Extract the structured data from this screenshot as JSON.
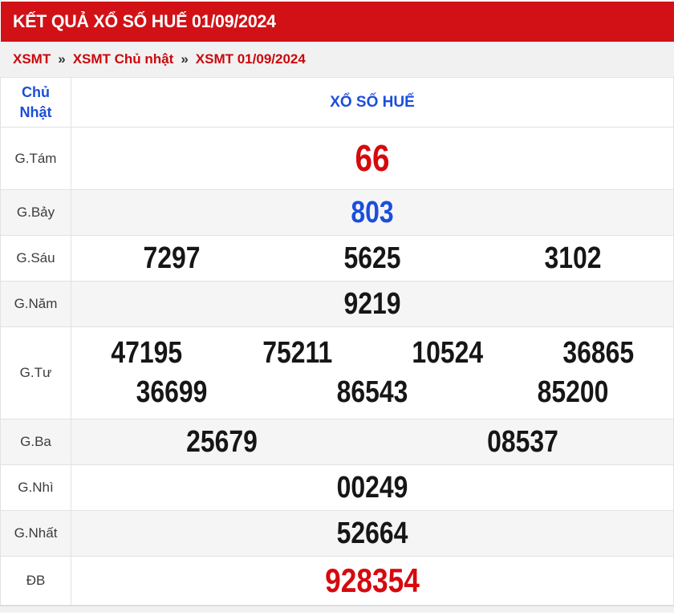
{
  "header": {
    "title": "KẾT QUẢ XỔ SỐ HUẾ 01/09/2024",
    "bg_color": "#d11116",
    "text_color": "#ffffff"
  },
  "breadcrumb": {
    "separator": "»",
    "link_color": "#cb080c",
    "items": [
      "XSMT",
      "XSMT Chủ nhật",
      "XSMT 01/09/2024"
    ]
  },
  "table": {
    "day_label": "Chủ Nhật",
    "station_title": "XỔ SỐ HUẾ",
    "header_link_color": "#1b4edb",
    "number_color_default": "#161616",
    "number_color_special": "#d6090e",
    "number_color_seven": "#1b4edb",
    "row_alt_bg": "#f5f5f5",
    "rows": [
      {
        "label": "G.Tám",
        "lines": [
          [
            "66"
          ]
        ]
      },
      {
        "label": "G.Bảy",
        "lines": [
          [
            "803"
          ]
        ]
      },
      {
        "label": "G.Sáu",
        "lines": [
          [
            "7297",
            "5625",
            "3102"
          ]
        ]
      },
      {
        "label": "G.Năm",
        "lines": [
          [
            "9219"
          ]
        ]
      },
      {
        "label": "G.Tư",
        "lines": [
          [
            "47195",
            "75211",
            "10524",
            "36865"
          ],
          [
            "36699",
            "86543",
            "85200"
          ]
        ]
      },
      {
        "label": "G.Ba",
        "lines": [
          [
            "25679",
            "08537"
          ]
        ]
      },
      {
        "label": "G.Nhì",
        "lines": [
          [
            "00249"
          ]
        ]
      },
      {
        "label": "G.Nhất",
        "lines": [
          [
            "52664"
          ]
        ]
      },
      {
        "label": "ĐB",
        "lines": [
          [
            "928354"
          ]
        ]
      }
    ]
  }
}
